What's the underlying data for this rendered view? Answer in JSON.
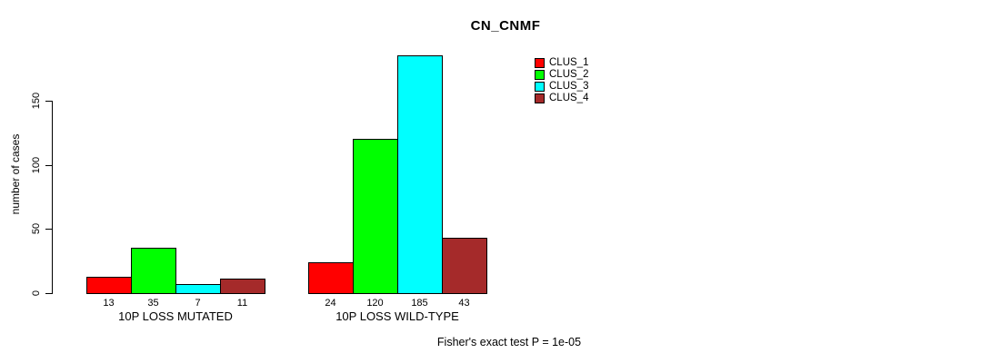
{
  "chart_data": {
    "type": "bar",
    "title": "CN_CNMF",
    "ylabel": "number of cases",
    "xlabel": "",
    "categories": [
      "10P LOSS MUTATED",
      "10P LOSS WILD-TYPE"
    ],
    "series": [
      {
        "name": "CLUS_1",
        "color": "#FF0000",
        "values": [
          13,
          24
        ]
      },
      {
        "name": "CLUS_2",
        "color": "#00FF00",
        "values": [
          35,
          120
        ]
      },
      {
        "name": "CLUS_3",
        "color": "#00FFFF",
        "values": [
          7,
          185
        ]
      },
      {
        "name": "CLUS_4",
        "color": "#A52A2A",
        "values": [
          11,
          43
        ]
      }
    ],
    "bar_value_labels": [
      [
        13,
        35,
        7,
        11
      ],
      [
        24,
        120,
        185,
        43
      ]
    ],
    "yticks": [
      0,
      50,
      100,
      150
    ],
    "ylim": [
      0,
      185
    ],
    "grid": false,
    "legend_position": "top-right",
    "annotation": "Fisher's exact test P = 1e-05"
  }
}
